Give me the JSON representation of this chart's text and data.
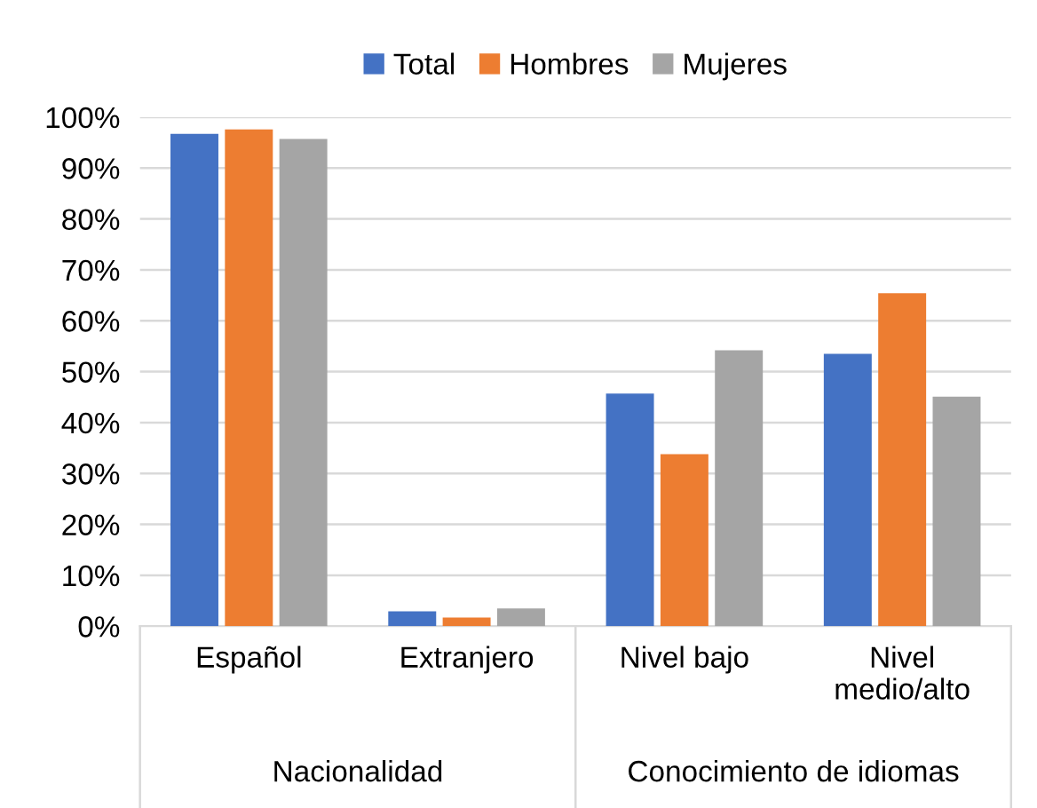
{
  "chart_data": {
    "type": "bar",
    "categories": [
      "Español",
      "Extranjero",
      "Nivel bajo",
      "Nivel\nmedio/alto"
    ],
    "series": [
      {
        "name": "Total",
        "color": "#4472c4",
        "values": [
          96.7,
          2.9,
          45.7,
          53.5
        ]
      },
      {
        "name": "Hombres",
        "color": "#ed7d31",
        "values": [
          97.6,
          1.7,
          33.8,
          65.4
        ]
      },
      {
        "name": "Mujeres",
        "color": "#a5a5a5",
        "values": [
          95.7,
          3.5,
          54.2,
          45.1
        ]
      }
    ],
    "annotations": [
      "Nacionalidad",
      "Conocimiento de idiomas"
    ],
    "ylim": [
      0,
      100
    ],
    "yticks": [
      {
        "value": 0,
        "label": "0%"
      },
      {
        "value": 10,
        "label": "10%"
      },
      {
        "value": 20,
        "label": "20%"
      },
      {
        "value": 30,
        "label": "30%"
      },
      {
        "value": 40,
        "label": "40%"
      },
      {
        "value": 50,
        "label": "50%"
      },
      {
        "value": 60,
        "label": "60%"
      },
      {
        "value": 70,
        "label": "70%"
      },
      {
        "value": 80,
        "label": "80%"
      },
      {
        "value": 90,
        "label": "90%"
      },
      {
        "value": 100,
        "label": "100%"
      }
    ],
    "grid": "y",
    "legend": "top"
  }
}
